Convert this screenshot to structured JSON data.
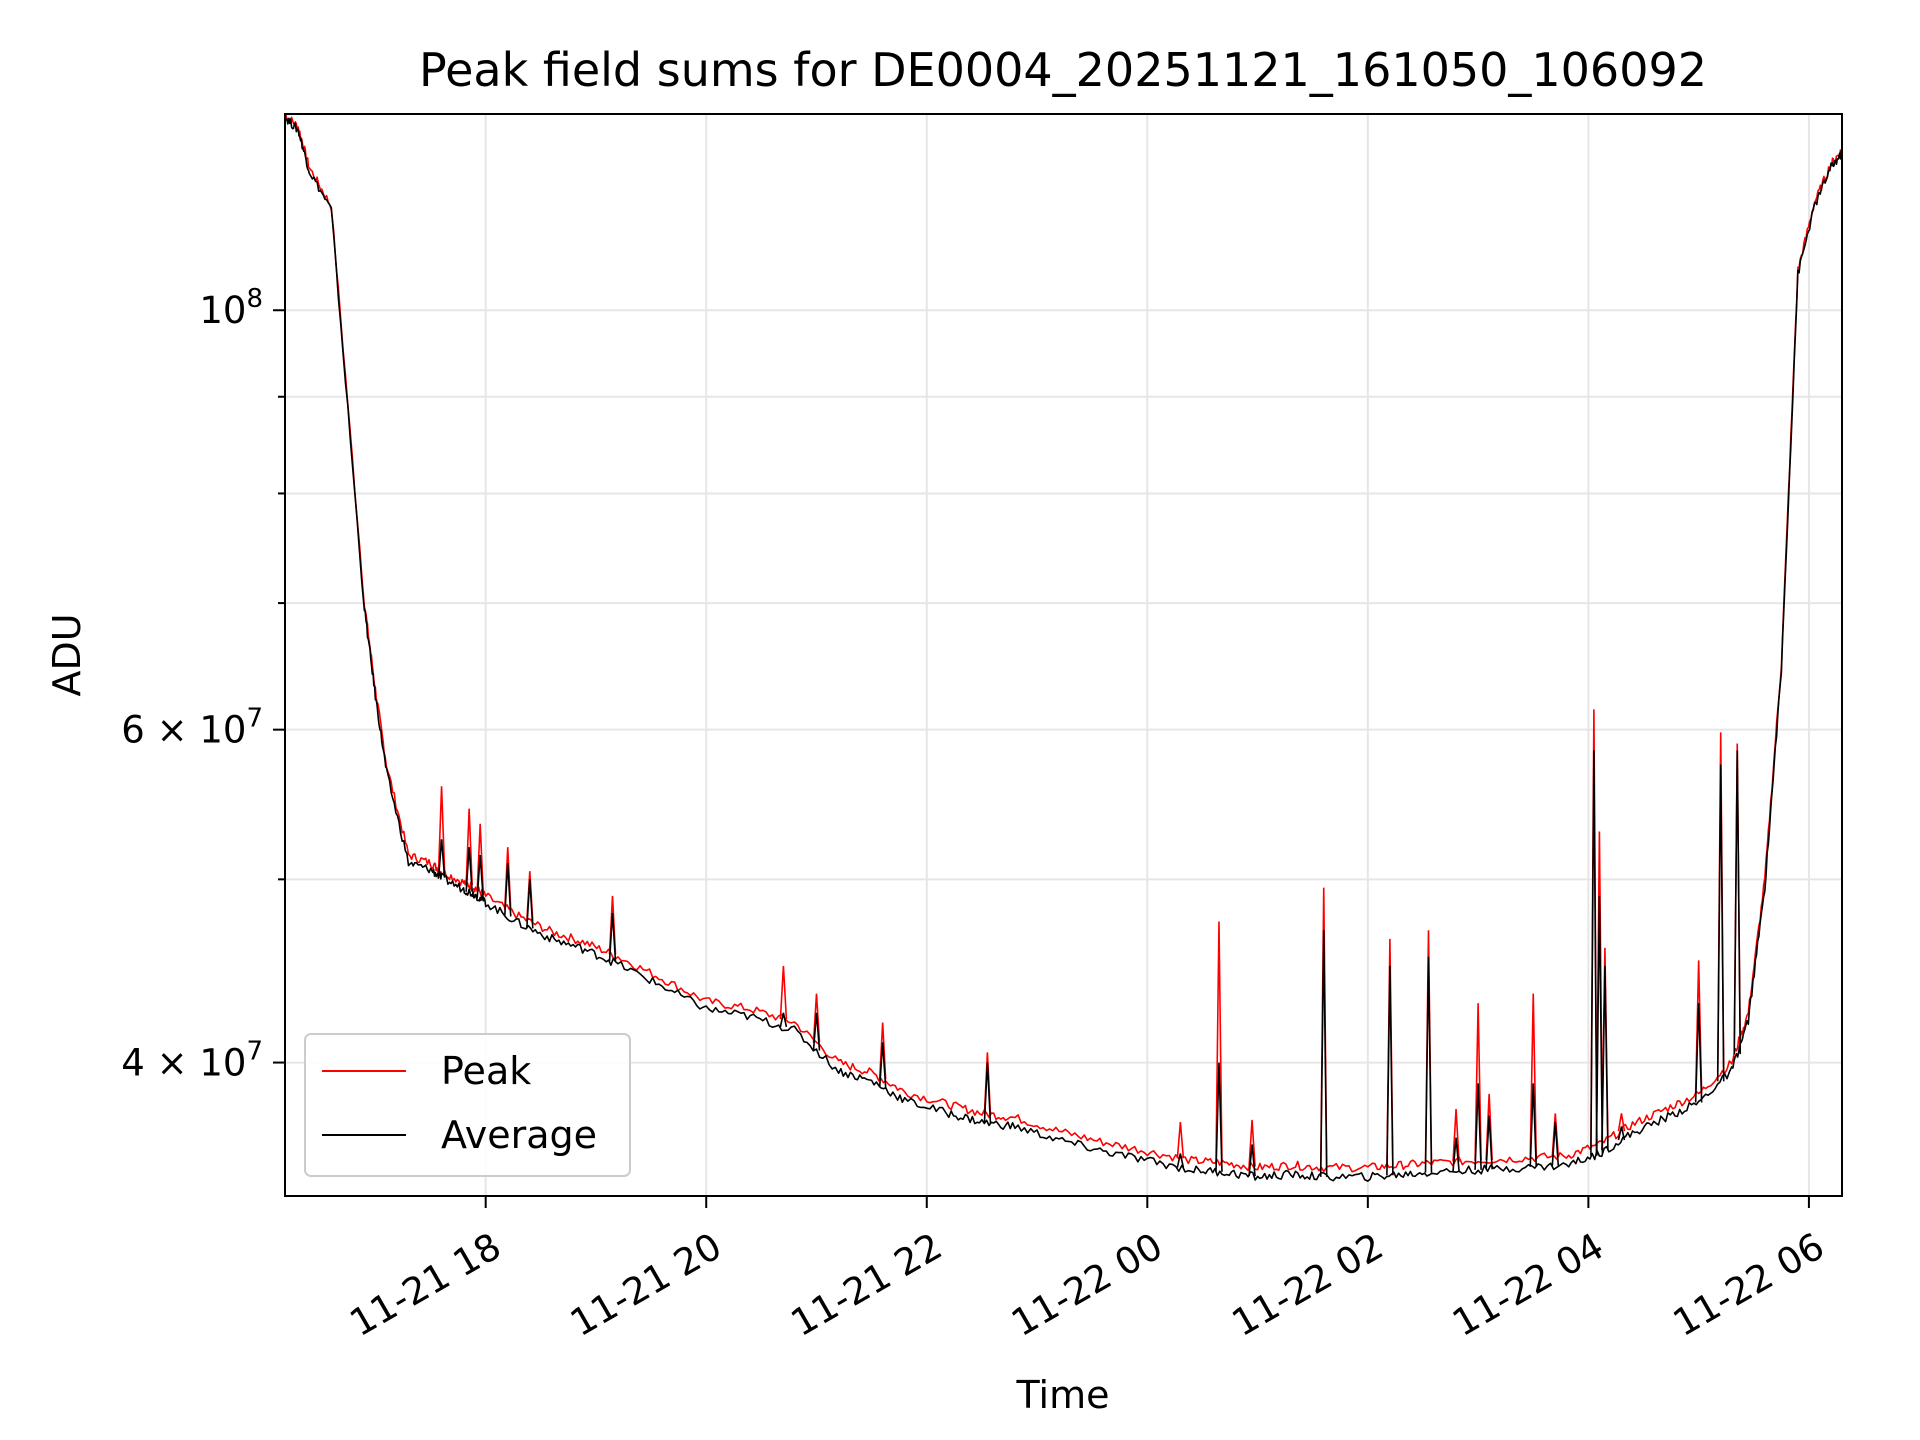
{
  "chart_data": {
    "type": "line",
    "title": "Peak field sums for DE0004_20251121_161050_106092",
    "xlabel": "Time",
    "ylabel": "ADU",
    "yscale": "log",
    "xlim": [
      16.18,
      30.3
    ],
    "ylim": [
      34000000,
      127000000
    ],
    "x_ticks": [
      {
        "value": 18,
        "label": "11-21 18"
      },
      {
        "value": 20,
        "label": "11-21 20"
      },
      {
        "value": 22,
        "label": "11-21 22"
      },
      {
        "value": 24,
        "label": "11-22 00"
      },
      {
        "value": 26,
        "label": "11-22 02"
      },
      {
        "value": 28,
        "label": "11-22 04"
      },
      {
        "value": 30,
        "label": "11-22 06"
      }
    ],
    "y_ticks": [
      {
        "value": 40000000,
        "base": "4",
        "times": "×",
        "mantissa": "10",
        "exp": "7"
      },
      {
        "value": 60000000,
        "base": "6",
        "times": "×",
        "mantissa": "10",
        "exp": "7"
      },
      {
        "value": 100000000,
        "base": "",
        "times": "",
        "mantissa": "10",
        "exp": "8"
      }
    ],
    "y_minor_ticks": [
      50000000,
      70000000,
      80000000,
      90000000
    ],
    "grid": true,
    "legend_position": "lower-left",
    "series": [
      {
        "name": "Peak",
        "color": "#ff0000",
        "x": [
          16.18,
          16.3,
          16.4,
          16.6,
          16.9,
          17.0,
          17.1,
          17.3,
          17.5,
          17.6,
          17.8,
          17.9,
          18.0,
          18.3,
          18.6,
          18.9,
          19.2,
          19.6,
          20.0,
          20.4,
          20.8,
          21.2,
          21.5,
          21.8,
          22.2,
          22.5,
          22.8,
          23.2,
          23.6,
          24.0,
          24.4,
          24.7,
          25.0,
          25.3,
          25.6,
          26.0,
          26.3,
          26.6,
          27.0,
          27.4,
          27.8,
          28.1,
          28.4,
          28.7,
          29.0,
          29.3,
          29.45,
          29.6,
          29.75,
          29.9,
          30.05,
          30.2,
          30.3
        ],
        "y": [
          127000000,
          125000000,
          119000000,
          113500000,
          70000000,
          63000000,
          57500000,
          51500000,
          51000000,
          50500000,
          49800000,
          49500000,
          49000000,
          47800000,
          46900000,
          46300000,
          45500000,
          44300000,
          43100000,
          42700000,
          42000000,
          40000000,
          39500000,
          38600000,
          38000000,
          37600000,
          37400000,
          36800000,
          36300000,
          35900000,
          35500000,
          35400000,
          35200000,
          35300000,
          35200000,
          35200000,
          35300000,
          35400000,
          35500000,
          35600000,
          35700000,
          36200000,
          37100000,
          37800000,
          38500000,
          40000000,
          42500000,
          50000000,
          65000000,
          105000000,
          114000000,
          119500000,
          121500000
        ]
      },
      {
        "name": "Average",
        "color": "#000000",
        "x": [
          16.18,
          16.3,
          16.4,
          16.6,
          16.9,
          17.0,
          17.1,
          17.3,
          17.5,
          17.6,
          17.8,
          17.9,
          18.0,
          18.3,
          18.6,
          18.9,
          19.2,
          19.6,
          20.0,
          20.4,
          20.8,
          21.2,
          21.5,
          21.8,
          22.2,
          22.5,
          22.8,
          23.2,
          23.6,
          24.0,
          24.4,
          24.7,
          25.0,
          25.3,
          25.6,
          26.0,
          26.3,
          26.6,
          27.0,
          27.4,
          27.8,
          28.1,
          28.4,
          28.7,
          29.0,
          29.3,
          29.45,
          29.6,
          29.75,
          29.9,
          30.05,
          30.2,
          30.3
        ],
        "y": [
          126500000,
          124500000,
          118500000,
          113000000,
          69500000,
          62500000,
          57000000,
          51000000,
          50600000,
          50100000,
          49400000,
          49100000,
          48600000,
          47400000,
          46500000,
          45900000,
          45100000,
          43900000,
          42700000,
          42300000,
          41600000,
          39600000,
          39100000,
          38200000,
          37600000,
          37200000,
          37000000,
          36400000,
          35900000,
          35500000,
          35100000,
          35000000,
          34800000,
          34900000,
          34800000,
          34800000,
          34900000,
          35000000,
          35100000,
          35200000,
          35300000,
          35800000,
          36700000,
          37400000,
          38100000,
          39600000,
          42100000,
          49500000,
          64500000,
          104500000,
          113500000,
          119000000,
          121000000
        ]
      }
    ],
    "spikes": {
      "x": [
        17.6,
        17.85,
        17.95,
        18.2,
        18.4,
        19.15,
        20.7,
        21.0,
        21.6,
        22.55,
        24.3,
        24.65,
        24.95,
        25.6,
        26.2,
        26.55,
        26.8,
        27.0,
        27.1,
        27.5,
        27.7,
        28.05,
        28.1,
        28.15,
        28.3,
        29.0,
        29.2,
        29.35
      ],
      "peak": [
        56000000,
        54500000,
        53500000,
        52000000,
        50500000,
        49000000,
        45000000,
        43500000,
        42000000,
        40500000,
        37200000,
        47500000,
        37300000,
        49500000,
        46500000,
        47000000,
        37800000,
        43000000,
        38500000,
        43500000,
        37600000,
        61500000,
        53000000,
        46000000,
        37600000,
        45300000,
        59800000,
        59000000
      ],
      "avg": [
        52500000,
        52000000,
        51500000,
        51000000,
        50000000,
        48000000,
        42500000,
        42500000,
        41000000,
        40000000,
        35800000,
        40000000,
        36200000,
        47000000,
        45000000,
        45500000,
        36500000,
        39000000,
        37500000,
        39000000,
        37200000,
        58500000,
        49000000,
        45000000,
        37000000,
        43000000,
        57500000,
        58500000
      ]
    }
  },
  "legend": {
    "items": [
      {
        "label": "Peak",
        "color": "#ff0000"
      },
      {
        "label": "Average",
        "color": "#000000"
      }
    ]
  }
}
